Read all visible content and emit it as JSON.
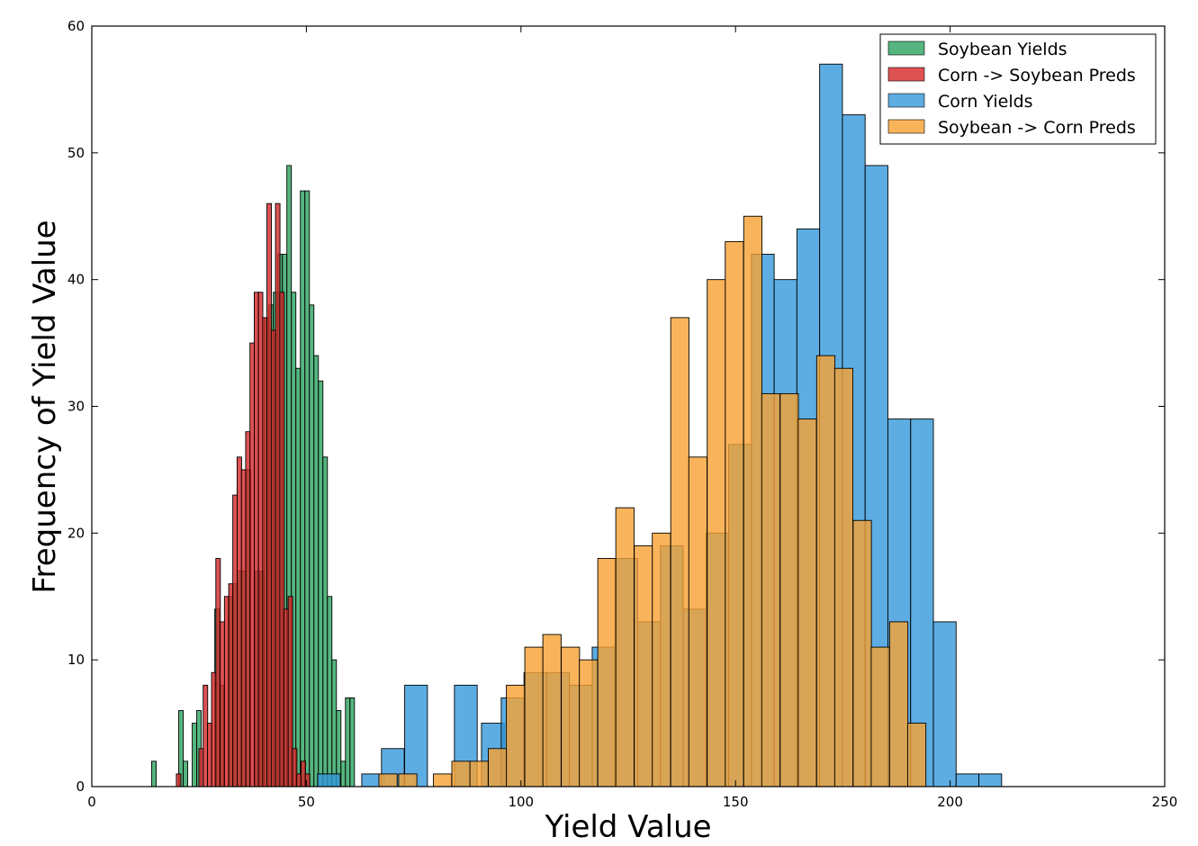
{
  "chart_data": {
    "type": "bar",
    "title": "",
    "xlabel": "Yield Value",
    "ylabel": "Frequency of Yield Value",
    "xlim": [
      0,
      250
    ],
    "ylim": [
      0,
      60
    ],
    "xticks": [
      "0",
      "50",
      "100",
      "150",
      "200",
      "250"
    ],
    "yticks": [
      "0",
      "10",
      "20",
      "30",
      "40",
      "50",
      "60"
    ],
    "grid": false,
    "legend_position": "top-right",
    "series": [
      {
        "name": "Soybean Yields",
        "color": "#2ca25f",
        "bin_width": 1.05,
        "bins": [
          [
            13.95,
            2
          ],
          [
            20.25,
            6
          ],
          [
            21.3,
            2
          ],
          [
            23.4,
            5
          ],
          [
            24.45,
            6
          ],
          [
            28.65,
            14
          ],
          [
            29.7,
            8
          ],
          [
            31.8,
            15
          ],
          [
            32.85,
            16
          ],
          [
            33.9,
            17
          ],
          [
            34.95,
            17
          ],
          [
            36.0,
            25
          ],
          [
            38.1,
            17
          ],
          [
            39.15,
            17
          ],
          [
            40.2,
            37
          ],
          [
            41.25,
            38
          ],
          [
            42.3,
            39
          ],
          [
            43.35,
            42
          ],
          [
            44.4,
            42
          ],
          [
            45.45,
            49
          ],
          [
            46.5,
            39
          ],
          [
            47.55,
            33
          ],
          [
            48.6,
            47
          ],
          [
            49.65,
            47
          ],
          [
            50.7,
            38
          ],
          [
            51.75,
            34
          ],
          [
            52.8,
            32
          ],
          [
            53.85,
            26
          ],
          [
            54.9,
            15
          ],
          [
            55.95,
            10
          ],
          [
            57.0,
            6
          ],
          [
            58.05,
            2
          ],
          [
            59.1,
            7
          ],
          [
            60.15,
            7
          ]
        ]
      },
      {
        "name": "Corn -> Soybean Preds",
        "color": "#d62728",
        "bin_width": 1.05,
        "bins": [
          [
            19.7,
            1
          ],
          [
            24.95,
            3
          ],
          [
            25.95,
            8
          ],
          [
            26.95,
            5
          ],
          [
            27.9,
            9
          ],
          [
            28.9,
            18
          ],
          [
            29.9,
            13
          ],
          [
            30.9,
            15
          ],
          [
            31.9,
            16
          ],
          [
            32.85,
            23
          ],
          [
            33.85,
            26
          ],
          [
            34.85,
            25
          ],
          [
            35.85,
            28
          ],
          [
            36.85,
            35
          ],
          [
            37.85,
            39
          ],
          [
            38.8,
            39
          ],
          [
            39.8,
            37
          ],
          [
            40.8,
            46
          ],
          [
            41.8,
            36
          ],
          [
            42.8,
            46
          ],
          [
            43.8,
            39
          ],
          [
            44.75,
            14
          ],
          [
            45.75,
            15
          ],
          [
            46.75,
            3
          ],
          [
            47.75,
            1
          ],
          [
            48.75,
            2
          ],
          [
            49.75,
            1
          ]
        ]
      },
      {
        "name": "Corn Yields",
        "color": "#3498db",
        "bin_width": 5.3,
        "bins": [
          [
            52.6,
            1
          ],
          [
            62.9,
            1
          ],
          [
            67.5,
            3
          ],
          [
            72.9,
            8
          ],
          [
            84.5,
            8
          ],
          [
            90.8,
            5
          ],
          [
            95.4,
            7
          ],
          [
            100.7,
            9
          ],
          [
            106.0,
            9
          ],
          [
            111.3,
            8
          ],
          [
            116.6,
            11
          ],
          [
            121.9,
            18
          ],
          [
            127.2,
            13
          ],
          [
            132.5,
            19
          ],
          [
            137.8,
            14
          ],
          [
            143.1,
            20
          ],
          [
            148.4,
            27
          ],
          [
            153.7,
            42
          ],
          [
            159.0,
            40
          ],
          [
            164.3,
            44
          ],
          [
            169.6,
            57
          ],
          [
            174.9,
            53
          ],
          [
            180.2,
            49
          ],
          [
            185.5,
            29
          ],
          [
            190.8,
            29
          ],
          [
            196.1,
            13
          ],
          [
            201.4,
            1
          ],
          [
            206.7,
            1
          ]
        ]
      },
      {
        "name": "Soybean -> Corn Preds",
        "color": "#f7a132",
        "bin_width": 4.25,
        "bins": [
          [
            66.9,
            1
          ],
          [
            71.5,
            1
          ],
          [
            79.6,
            1
          ],
          [
            83.9,
            2
          ],
          [
            88.1,
            2
          ],
          [
            92.4,
            3
          ],
          [
            96.6,
            8
          ],
          [
            100.9,
            11
          ],
          [
            105.1,
            12
          ],
          [
            109.4,
            11
          ],
          [
            113.6,
            10
          ],
          [
            117.9,
            18
          ],
          [
            122.1,
            22
          ],
          [
            126.4,
            19
          ],
          [
            130.6,
            20
          ],
          [
            134.9,
            37
          ],
          [
            139.1,
            26
          ],
          [
            143.4,
            40
          ],
          [
            147.6,
            43
          ],
          [
            151.9,
            45
          ],
          [
            156.1,
            31
          ],
          [
            160.4,
            31
          ],
          [
            164.6,
            29
          ],
          [
            168.9,
            34
          ],
          [
            173.1,
            33
          ],
          [
            177.4,
            21
          ],
          [
            181.6,
            11
          ],
          [
            185.9,
            13
          ],
          [
            190.1,
            5
          ]
        ]
      }
    ]
  }
}
